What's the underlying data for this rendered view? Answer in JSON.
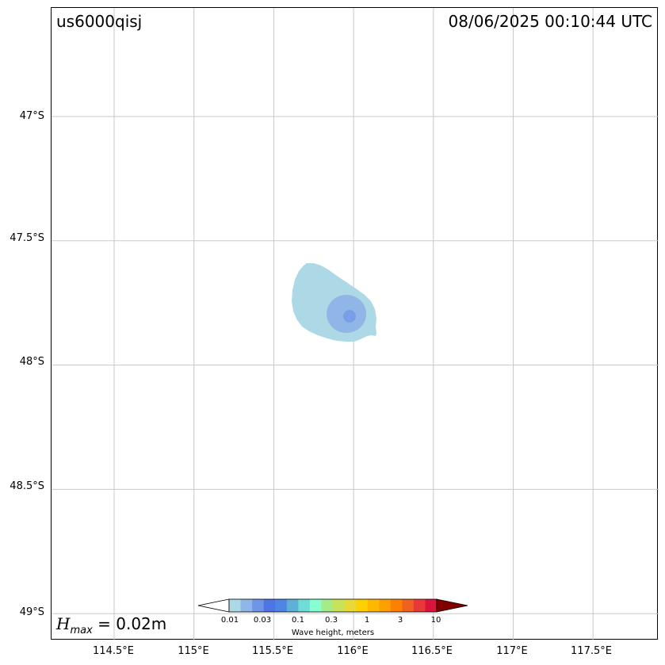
{
  "header": {
    "event_id": "us6000qisj",
    "timestamp": "08/06/2025 00:10:44 UTC"
  },
  "hmax": {
    "symbol": "H",
    "subscript": "max",
    "value_text": " = 0.02m"
  },
  "axes": {
    "lat_ticks": [
      "47°S",
      "47.5°S",
      "48°S",
      "48.5°S",
      "49°S"
    ],
    "lon_ticks": [
      "114.5°E",
      "115°E",
      "115.5°E",
      "116°E",
      "116.5°E",
      "117°E",
      "117.5°E"
    ],
    "lat_values": [
      -47.0,
      -47.5,
      -48.0,
      -48.5,
      -49.0
    ],
    "lon_values": [
      114.5,
      115.0,
      115.5,
      116.0,
      116.5,
      117.0,
      117.5
    ],
    "grid": true
  },
  "colorbar": {
    "label": "Wave height, meters",
    "tick_labels": [
      "0.01",
      "0.03",
      "0.1",
      "0.3",
      "1",
      "3",
      "10"
    ],
    "colors": [
      "#add8e6",
      "#8fb6e6",
      "#6f95e6",
      "#4f74e6",
      "#4f86e6",
      "#5fb0d8",
      "#6fdcd6",
      "#87ffcf",
      "#a4ec8a",
      "#c8e25a",
      "#e8d838",
      "#ffd000",
      "#ffb800",
      "#ffa000",
      "#ff8000",
      "#f06020",
      "#e83838",
      "#dc143c"
    ],
    "under_color": "#ffffff",
    "over_color": "#800000"
  },
  "wave_field": {
    "units": "m",
    "max_height": 0.02,
    "center_lon": 115.98,
    "center_lat": -47.81,
    "levels": [
      {
        "min": 0.01,
        "color": "#add8e6"
      },
      {
        "min": 0.015,
        "color": "#8fb6e6"
      },
      {
        "min": 0.02,
        "color": "#7b9fe6"
      }
    ]
  }
}
